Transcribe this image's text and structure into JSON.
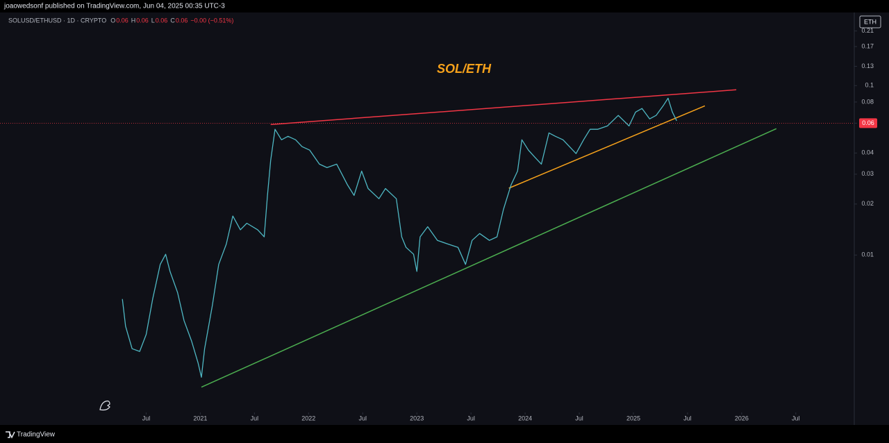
{
  "chart_data": {
    "type": "line",
    "source": "joaowedsonf published on TradingView.com, Jun 04, 2025 00:35 UTC-3",
    "symbol": "SOLUSD/ETHUSD · 1D · CRYPTO",
    "ohlc": [
      {
        "label": "O",
        "value": 0.06
      },
      {
        "label": "H",
        "value": 0.06
      },
      {
        "label": "L",
        "value": 0.06
      },
      {
        "label": "C",
        "value": 0.06
      }
    ],
    "change": "−0.00 (−0.51%)",
    "title": "SOL/ETH",
    "unit": "ETH",
    "last_price": 0.06,
    "brand": "TradingView",
    "log_y": true,
    "grid": false,
    "xlim": [
      2019.15,
      2027.04
    ],
    "xticks": [
      {
        "value": 2020.5,
        "label": "Jul"
      },
      2021,
      {
        "value": 2021.5,
        "label": "Jul"
      },
      2022,
      {
        "value": 2022.5,
        "label": "Jul"
      },
      2023,
      {
        "value": 2023.5,
        "label": "Jul"
      },
      2024,
      {
        "value": 2024.5,
        "label": "Jul"
      },
      2025,
      {
        "value": 2025.5,
        "label": "Jul"
      },
      2026,
      {
        "value": 2026.5,
        "label": "Jul"
      }
    ],
    "ylim": [
      0.0012,
      0.26
    ],
    "yticks": [
      0.01,
      0.02,
      0.03,
      0.04,
      0.06,
      0.08,
      0.1,
      0.13,
      0.17,
      0.21
    ],
    "series": [
      {
        "color": "#4fb8c4",
        "x": [
          2020.28,
          2020.31,
          2020.37,
          2020.44,
          2020.5,
          2020.56,
          2020.63,
          2020.68,
          2020.72,
          2020.79,
          2020.85,
          2020.92,
          2020.98,
          2021.01,
          2021.04,
          2021.11,
          2021.17,
          2021.24,
          2021.3,
          2021.37,
          2021.43,
          2021.53,
          2021.59,
          2021.62,
          2021.65,
          2021.69,
          2021.75,
          2021.81,
          2021.88,
          2021.94,
          2022.01,
          2022.1,
          2022.17,
          2022.26,
          2022.36,
          2022.42,
          2022.49,
          2022.55,
          2022.65,
          2022.71,
          2022.81,
          2022.86,
          2022.9,
          2022.97,
          2023.0,
          2023.03,
          2023.1,
          2023.19,
          2023.29,
          2023.38,
          2023.45,
          2023.51,
          2023.58,
          2023.67,
          2023.74,
          2023.8,
          2023.87,
          2023.93,
          2023.97,
          2024.03,
          2024.09,
          2024.15,
          2024.22,
          2024.28,
          2024.35,
          2024.41,
          2024.47,
          2024.54,
          2024.6,
          2024.67,
          2024.76,
          2024.86,
          2024.96,
          2025.02,
          2025.08,
          2025.15,
          2025.21,
          2025.28,
          2025.32,
          2025.36,
          2025.4
        ],
        "values": [
          0.0055,
          0.0038,
          0.0028,
          0.0027,
          0.0034,
          0.0055,
          0.0088,
          0.0101,
          0.008,
          0.006,
          0.0041,
          0.0031,
          0.0023,
          0.0019,
          0.0028,
          0.005,
          0.0088,
          0.0116,
          0.017,
          0.0141,
          0.0154,
          0.0141,
          0.0128,
          0.0225,
          0.0361,
          0.0552,
          0.0479,
          0.0502,
          0.0479,
          0.0436,
          0.0416,
          0.0344,
          0.0328,
          0.0344,
          0.0259,
          0.0225,
          0.0313,
          0.0247,
          0.0215,
          0.0247,
          0.0215,
          0.0128,
          0.0111,
          0.0101,
          0.008,
          0.0128,
          0.0147,
          0.0122,
          0.0116,
          0.0111,
          0.0088,
          0.0122,
          0.0134,
          0.0122,
          0.0128,
          0.0186,
          0.0259,
          0.0313,
          0.0479,
          0.0416,
          0.0378,
          0.0344,
          0.0526,
          0.0502,
          0.0479,
          0.0436,
          0.0397,
          0.0479,
          0.0552,
          0.0552,
          0.0578,
          0.0667,
          0.0578,
          0.0698,
          0.0733,
          0.0636,
          0.0667,
          0.0768,
          0.0843,
          0.0698,
          0.062
        ]
      }
    ],
    "trendlines": [
      {
        "color": "#f23645",
        "x": [
          2021.65,
          2025.95
        ],
        "values": [
          0.0589,
          0.0945
        ]
      },
      {
        "color": "#f7a21b",
        "x": [
          2023.85,
          2025.66
        ],
        "values": [
          0.0248,
          0.076
        ]
      },
      {
        "color": "#4caf50",
        "x": [
          2021.01,
          2026.32
        ],
        "values": [
          0.00166,
          0.0557
        ]
      }
    ]
  }
}
